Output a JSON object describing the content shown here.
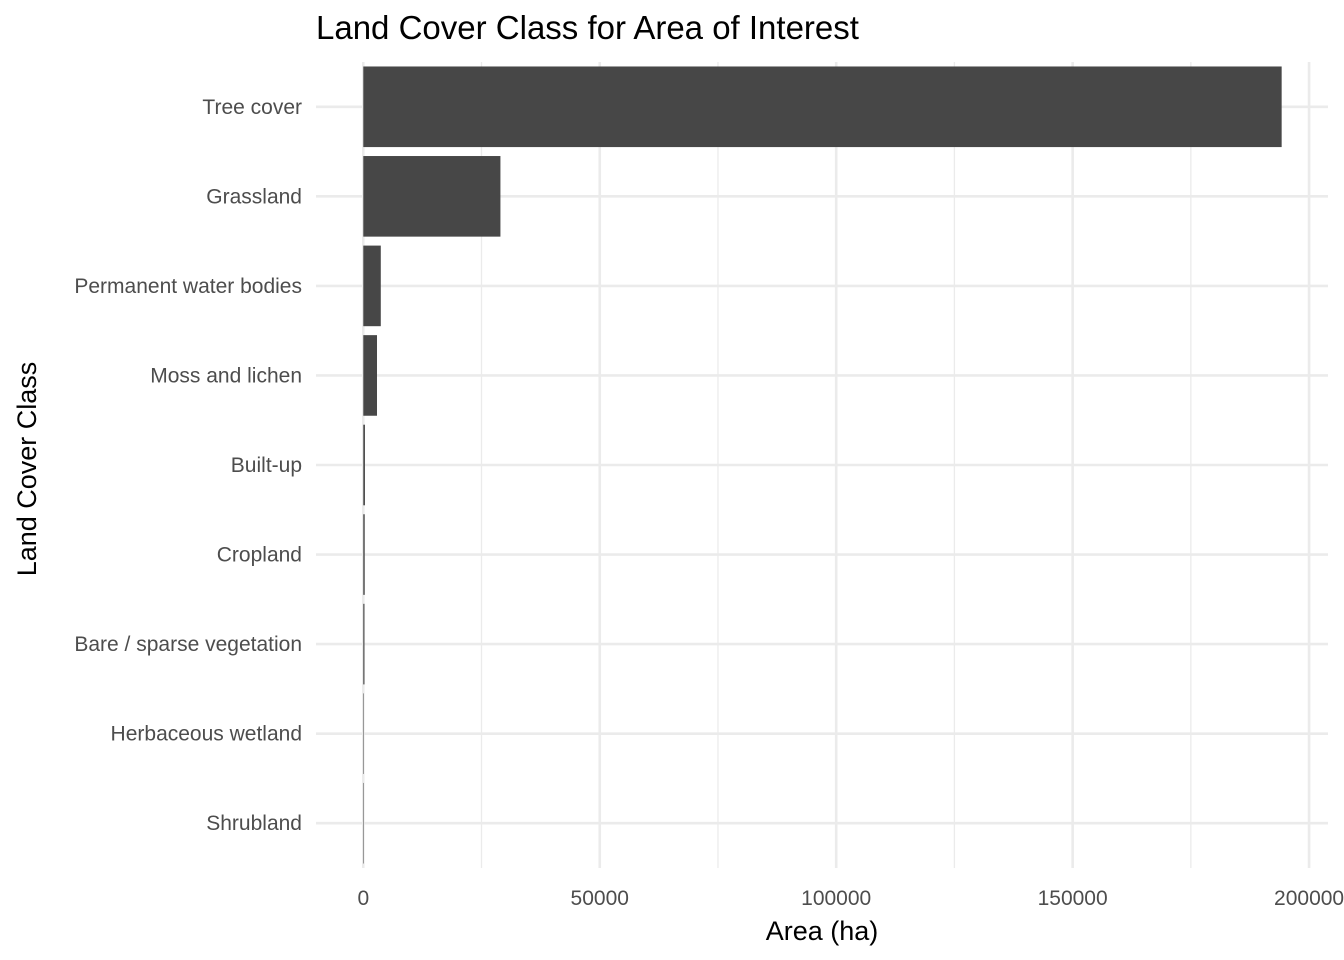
{
  "chart_data": {
    "type": "bar",
    "orientation": "horizontal",
    "title": "Land Cover Class for Area of Interest",
    "xlabel": "Area (ha)",
    "ylabel": "Land Cover Class",
    "categories": [
      "Tree cover",
      "Grassland",
      "Permanent water bodies",
      "Moss and lichen",
      "Built-up",
      "Cropland",
      "Bare / sparse vegetation",
      "Herbaceous wetland",
      "Shrubland"
    ],
    "values": [
      194200,
      29000,
      3700,
      2900,
      350,
      300,
      250,
      30,
      20
    ],
    "xlim": [
      -10000,
      204000
    ],
    "xticks": [
      0,
      50000,
      100000,
      150000,
      200000
    ],
    "xtick_labels": [
      "0",
      "50000",
      "100000",
      "150000",
      "200000"
    ],
    "grid": true,
    "bar_color": "#474747",
    "grid_color": "#ebebeb",
    "legend": "none"
  }
}
